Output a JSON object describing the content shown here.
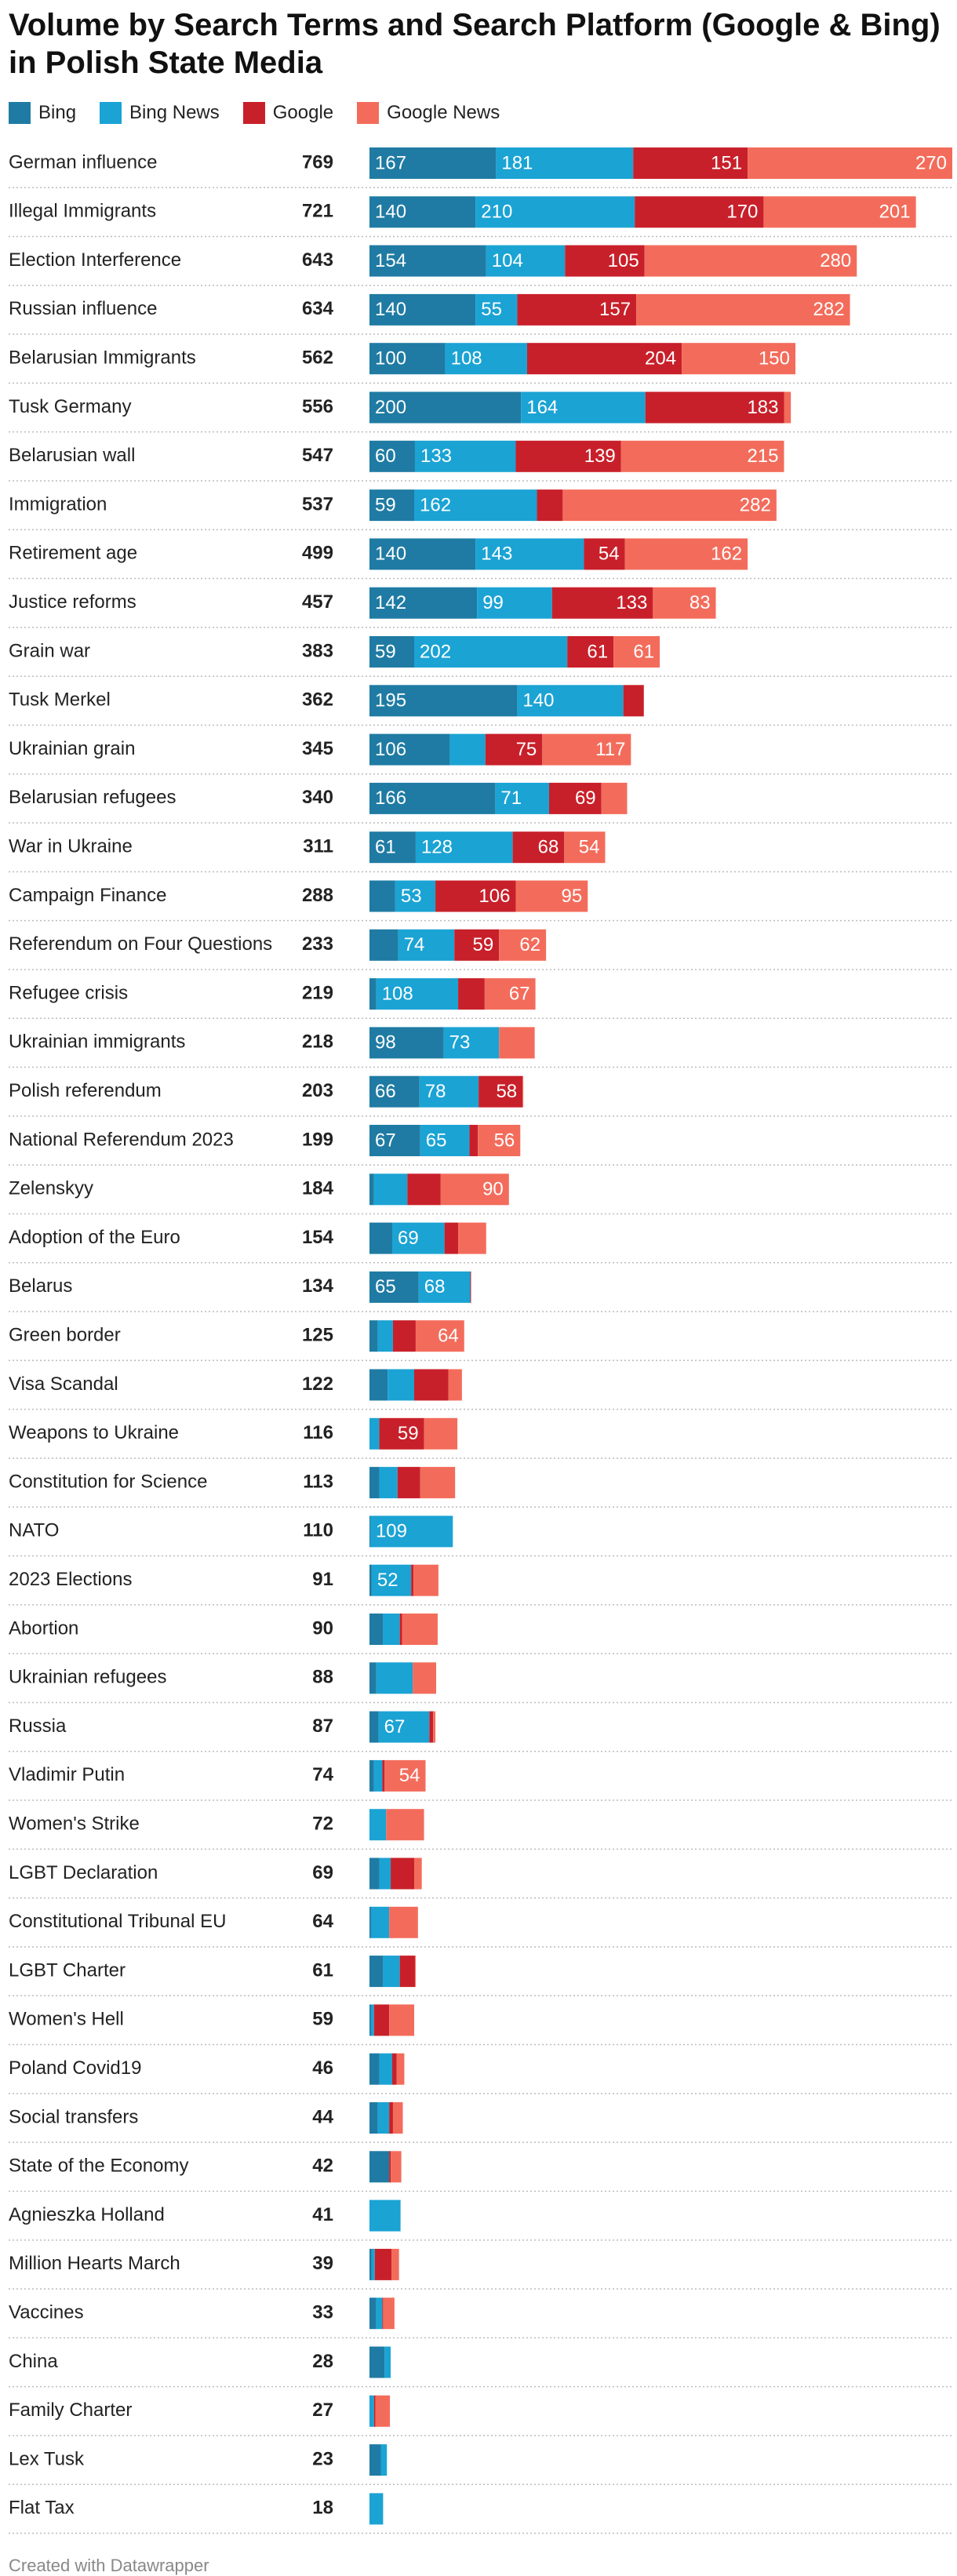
{
  "chart_data": {
    "type": "stacked-bar",
    "title": "Volume by Search Terms and Search Platform (Google & Bing) in Polish State Media",
    "footer": "Created with Datawrapper",
    "categories": [
      "German influence",
      "Illegal Immigrants",
      "Election Interference",
      "Russian influence",
      "Belarusian Immigrants",
      "Tusk Germany",
      "Belarusian wall",
      "Immigration",
      "Retirement age",
      "Justice reforms",
      "Grain war",
      "Tusk Merkel",
      "Ukrainian grain",
      "Belarusian refugees",
      "War in Ukraine",
      "Campaign Finance",
      "Referendum on Four Questions",
      "Refugee crisis",
      "Ukrainian immigrants",
      "Polish referendum",
      "National Referendum 2023",
      "Zelenskyy",
      "Adoption of the Euro",
      "Belarus",
      "Green border",
      "Visa Scandal",
      "Weapons to Ukraine",
      "Constitution for Science",
      "NATO",
      "2023 Elections",
      "Abortion",
      "Ukrainian refugees",
      "Russia",
      "Vladimir Putin",
      "Women's Strike",
      "LGBT Declaration",
      "Constitutional Tribunal EU",
      "LGBT Charter",
      "Women's Hell",
      "Poland Covid19",
      "Social transfers",
      "State of the Economy",
      "Agnieszka Holland",
      "Million Hearts March",
      "Vaccines",
      "China",
      "Family Charter",
      "Lex Tusk",
      "Flat Tax"
    ],
    "totals": [
      769,
      721,
      643,
      634,
      562,
      556,
      547,
      537,
      499,
      457,
      383,
      362,
      345,
      340,
      311,
      288,
      233,
      219,
      218,
      203,
      199,
      184,
      154,
      134,
      125,
      122,
      116,
      113,
      110,
      91,
      90,
      88,
      87,
      74,
      72,
      69,
      64,
      61,
      59,
      46,
      44,
      42,
      41,
      39,
      33,
      28,
      27,
      23,
      18
    ],
    "series": [
      {
        "name": "Bing",
        "color": "#1f7ba3",
        "values": [
          167,
          140,
          154,
          140,
          100,
          200,
          60,
          59,
          140,
          142,
          59,
          195,
          106,
          166,
          61,
          34,
          38,
          9,
          98,
          66,
          67,
          6,
          30,
          65,
          11,
          24,
          0,
          13,
          1,
          3,
          18,
          9,
          12,
          6,
          0,
          13,
          2,
          18,
          2,
          13,
          11,
          26,
          0,
          3,
          9,
          20,
          0,
          15,
          0
        ]
      },
      {
        "name": "Bing News",
        "color": "#1ba3d4",
        "values": [
          181,
          210,
          104,
          55,
          108,
          164,
          133,
          162,
          143,
          99,
          202,
          140,
          47,
          71,
          128,
          53,
          74,
          108,
          73,
          78,
          65,
          44,
          69,
          68,
          20,
          35,
          13,
          24,
          109,
          52,
          22,
          48,
          67,
          11,
          22,
          15,
          24,
          22,
          4,
          17,
          15,
          0,
          41,
          4,
          8,
          8,
          6,
          8,
          18
        ]
      },
      {
        "name": "Google",
        "color": "#c8202a",
        "values": [
          151,
          170,
          105,
          157,
          204,
          183,
          139,
          34,
          54,
          133,
          61,
          27,
          75,
          69,
          68,
          106,
          59,
          35,
          0,
          58,
          11,
          44,
          18,
          1,
          30,
          45,
          59,
          30,
          0,
          3,
          3,
          0,
          5,
          3,
          0,
          31,
          0,
          20,
          20,
          6,
          5,
          2,
          0,
          22,
          1,
          0,
          2,
          0,
          0
        ]
      },
      {
        "name": "Google News",
        "color": "#f36c5b",
        "values": [
          270,
          201,
          280,
          282,
          150,
          9,
          215,
          282,
          162,
          83,
          61,
          0,
          117,
          34,
          54,
          95,
          62,
          67,
          47,
          1,
          56,
          90,
          37,
          0,
          64,
          18,
          44,
          46,
          0,
          33,
          47,
          31,
          3,
          54,
          50,
          10,
          38,
          1,
          33,
          10,
          13,
          14,
          0,
          10,
          15,
          0,
          19,
          0,
          0
        ]
      }
    ]
  }
}
